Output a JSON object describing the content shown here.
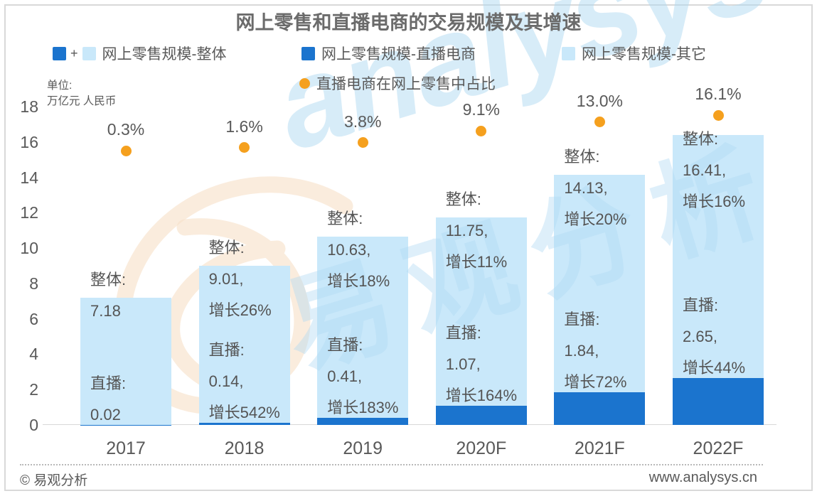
{
  "page": {
    "footer": {
      "copyright": "© 易观分析",
      "website": "www.analysys.cn"
    },
    "watermark": {
      "en": "analysys",
      "cn": "易观分析"
    }
  },
  "legend": {
    "total": {
      "plus": "+",
      "label": "网上零售规模-整体"
    },
    "live": {
      "label": "网上零售规模-直播电商"
    },
    "other": {
      "label": "网上零售规模-其它"
    },
    "ratio": {
      "label": "直播电商在网上零售中占比"
    }
  },
  "chart_data": {
    "type": "bar",
    "stacked": true,
    "title": "网上零售和直播电商的交易规模及其增速",
    "unit": {
      "line1": "单位:",
      "line2": "万亿元 人民币"
    },
    "categories": [
      "2017",
      "2018",
      "2019",
      "2020F",
      "2021F",
      "2022F"
    ],
    "series": [
      {
        "name": "网上零售规模-直播电商",
        "values": [
          0.02,
          0.14,
          0.41,
          1.07,
          1.84,
          2.65
        ],
        "color_key": "bar_dark"
      },
      {
        "name": "网上零售规模-其它",
        "values": [
          7.16,
          8.87,
          10.22,
          10.68,
          12.29,
          13.76
        ],
        "color_key": "bar_light"
      }
    ],
    "totals": {
      "name": "网上零售规模-整体",
      "values": [
        7.18,
        9.01,
        10.63,
        11.75,
        14.13,
        16.41
      ]
    },
    "dots": {
      "name": "直播电商在网上零售中占比",
      "values_pct": [
        0.3,
        1.6,
        3.8,
        9.1,
        13.0,
        16.1
      ],
      "labels": [
        "0.3%",
        "1.6%",
        "3.8%",
        "9.1%",
        "13.0%",
        "16.1%"
      ]
    },
    "annotations": [
      {
        "total": [
          "整体:",
          "7.18"
        ],
        "live": [
          "直播:",
          "0.02"
        ]
      },
      {
        "total": [
          "整体:",
          "9.01,",
          "增长26%"
        ],
        "live": [
          "直播:",
          "0.14,",
          "增长542%"
        ]
      },
      {
        "total": [
          "整体:",
          "10.63,",
          "增长18%"
        ],
        "live": [
          "直播:",
          "0.41,",
          "增长183%"
        ]
      },
      {
        "total": [
          "整体:",
          "11.75,",
          "增长11%"
        ],
        "live": [
          "直播:",
          "1.07,",
          "增长164%"
        ]
      },
      {
        "total": [
          "整体:",
          "14.13,",
          "增长20%"
        ],
        "live": [
          "直播:",
          "1.84,",
          "增长72%"
        ]
      },
      {
        "total": [
          "整体:",
          "16.41,",
          "增长16%"
        ],
        "live": [
          "直播:",
          "2.65,",
          "增长44%"
        ]
      }
    ],
    "y_axis": {
      "min": 0,
      "max": 18,
      "step": 2,
      "tick_labels": [
        "0",
        "2",
        "4",
        "6",
        "8",
        "10",
        "12",
        "14",
        "16",
        "18"
      ]
    },
    "legend_position": "top",
    "grid": false,
    "colors": {
      "bar_light": "#C9E8FA",
      "bar_dark": "#1B74CE",
      "dot": "#F5A01E",
      "text": "#595959"
    }
  }
}
